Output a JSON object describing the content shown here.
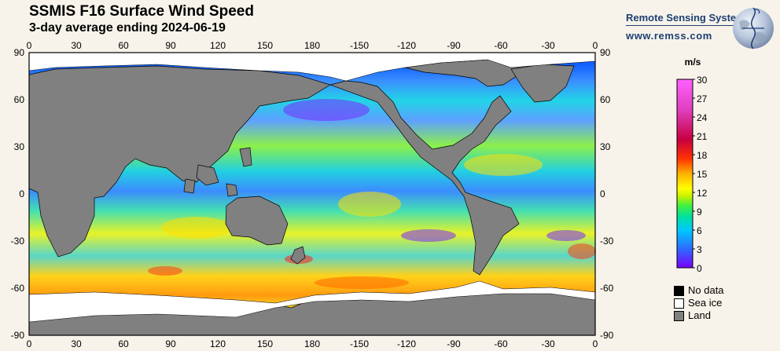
{
  "header": {
    "title": "SSMIS F16 Surface Wind Speed",
    "subtitle": "3-day average ending 2024-06-19"
  },
  "brand": {
    "name": "Remote Sensing Systems",
    "url": "www.remss.com"
  },
  "map": {
    "lon_labels": [
      "0",
      "30",
      "60",
      "90",
      "120",
      "150",
      "180",
      "-150",
      "-120",
      "-90",
      "-60",
      "-30",
      "0"
    ],
    "lat_labels": [
      "90",
      "60",
      "30",
      "0",
      "-30",
      "-60",
      "-90"
    ],
    "land_color": "#808080",
    "sea_ice_color": "#ffffff",
    "no_data_color": "#000000"
  },
  "colorbar": {
    "units": "m/s",
    "labels": [
      "30",
      "27",
      "24",
      "21",
      "18",
      "15",
      "12",
      "9",
      "6",
      "3",
      "0"
    ],
    "range": [
      0,
      30
    ],
    "colors": [
      "#7a00ff",
      "#2d6bff",
      "#00c8ff",
      "#00e0a0",
      "#40f040",
      "#c8f000",
      "#ffff00",
      "#ffb000",
      "#ff3000",
      "#c80040",
      "#e040c0",
      "#ff60ff"
    ]
  },
  "legend": {
    "items": [
      {
        "label": "No data",
        "color": "#000000"
      },
      {
        "label": "Sea ice",
        "color": "#ffffff"
      },
      {
        "label": "Land",
        "color": "#808080"
      }
    ]
  }
}
